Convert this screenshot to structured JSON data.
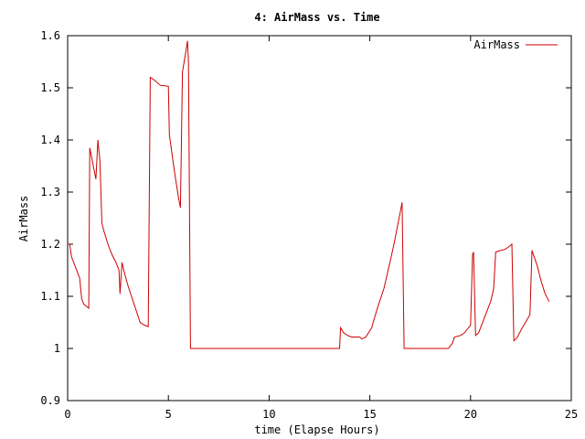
{
  "chart_data": {
    "type": "line",
    "title": "4: AirMass vs. Time",
    "xlabel": "time (Elapse Hours)",
    "ylabel": "AirMass",
    "xlim": [
      0,
      25
    ],
    "ylim": [
      0.9,
      1.6
    ],
    "xticks": [
      0,
      5,
      10,
      15,
      20,
      25
    ],
    "xtick_labels": [
      "0",
      "5",
      "10",
      "15",
      "20",
      "25"
    ],
    "yticks": [
      0.9,
      1,
      1.1,
      1.2,
      1.3,
      1.4,
      1.5,
      1.6
    ],
    "ytick_labels": [
      "0.9",
      "1",
      "1.1",
      "1.2",
      "1.3",
      "1.4",
      "1.5",
      "1.6"
    ],
    "grid": false,
    "legend_position": "top-right",
    "series": [
      {
        "name": "AirMass",
        "color": "#cc0000",
        "points": [
          [
            0.0,
            1.2
          ],
          [
            0.1,
            1.2
          ],
          [
            0.2,
            1.175
          ],
          [
            0.4,
            1.155
          ],
          [
            0.6,
            1.135
          ],
          [
            0.7,
            1.095
          ],
          [
            0.8,
            1.085
          ],
          [
            0.9,
            1.082
          ],
          [
            1.05,
            1.077
          ],
          [
            1.1,
            1.385
          ],
          [
            1.4,
            1.325
          ],
          [
            1.5,
            1.4
          ],
          [
            1.6,
            1.36
          ],
          [
            1.7,
            1.24
          ],
          [
            1.8,
            1.225
          ],
          [
            2.0,
            1.2
          ],
          [
            2.2,
            1.18
          ],
          [
            2.4,
            1.165
          ],
          [
            2.55,
            1.15
          ],
          [
            2.6,
            1.105
          ],
          [
            2.7,
            1.165
          ],
          [
            2.8,
            1.148
          ],
          [
            3.0,
            1.12
          ],
          [
            3.3,
            1.085
          ],
          [
            3.6,
            1.05
          ],
          [
            3.8,
            1.045
          ],
          [
            4.0,
            1.042
          ],
          [
            4.1,
            1.52
          ],
          [
            4.3,
            1.515
          ],
          [
            4.6,
            1.505
          ],
          [
            4.8,
            1.504
          ],
          [
            5.0,
            1.503
          ],
          [
            5.05,
            1.41
          ],
          [
            5.3,
            1.34
          ],
          [
            5.5,
            1.29
          ],
          [
            5.6,
            1.27
          ],
          [
            5.7,
            1.53
          ],
          [
            5.85,
            1.565
          ],
          [
            5.95,
            1.59
          ],
          [
            6.0,
            1.55
          ],
          [
            6.1,
            1.0
          ],
          [
            13.5,
            1.0
          ],
          [
            13.55,
            1.04
          ],
          [
            13.7,
            1.03
          ],
          [
            13.9,
            1.025
          ],
          [
            14.1,
            1.022
          ],
          [
            14.5,
            1.022
          ],
          [
            14.6,
            1.018
          ],
          [
            14.8,
            1.022
          ],
          [
            15.1,
            1.04
          ],
          [
            15.2,
            1.055
          ],
          [
            15.4,
            1.08
          ],
          [
            15.7,
            1.115
          ],
          [
            16.0,
            1.165
          ],
          [
            16.2,
            1.2
          ],
          [
            16.5,
            1.26
          ],
          [
            16.6,
            1.28
          ],
          [
            16.7,
            1.0
          ],
          [
            18.9,
            1.0
          ],
          [
            19.1,
            1.01
          ],
          [
            19.2,
            1.022
          ],
          [
            19.5,
            1.025
          ],
          [
            19.7,
            1.03
          ],
          [
            20.0,
            1.045
          ],
          [
            20.1,
            1.18
          ],
          [
            20.15,
            1.185
          ],
          [
            20.25,
            1.025
          ],
          [
            20.4,
            1.03
          ],
          [
            20.7,
            1.06
          ],
          [
            21.0,
            1.09
          ],
          [
            21.15,
            1.115
          ],
          [
            21.25,
            1.185
          ],
          [
            21.4,
            1.187
          ],
          [
            21.7,
            1.19
          ],
          [
            21.9,
            1.195
          ],
          [
            22.05,
            1.2
          ],
          [
            22.15,
            1.015
          ],
          [
            22.3,
            1.02
          ],
          [
            22.5,
            1.035
          ],
          [
            22.8,
            1.055
          ],
          [
            22.95,
            1.065
          ],
          [
            23.05,
            1.188
          ],
          [
            23.3,
            1.16
          ],
          [
            23.5,
            1.13
          ],
          [
            23.7,
            1.105
          ],
          [
            23.9,
            1.09
          ]
        ]
      }
    ]
  }
}
